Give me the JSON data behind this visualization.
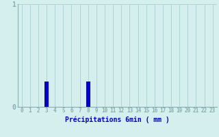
{
  "categories": [
    0,
    1,
    2,
    3,
    4,
    5,
    6,
    7,
    8,
    9,
    10,
    11,
    12,
    13,
    14,
    15,
    16,
    17,
    18,
    19,
    20,
    21,
    22,
    23
  ],
  "values": [
    0,
    0,
    0,
    0.25,
    0,
    0,
    0,
    0,
    0.25,
    0,
    0,
    0,
    0,
    0,
    0,
    0,
    0,
    0,
    0,
    0,
    0,
    0,
    0,
    0
  ],
  "bar_color": "#0000cc",
  "background_color": "#d4efee",
  "grid_color": "#aacfcf",
  "axis_color": "#8aadad",
  "text_color": "#0000cc",
  "xlabel": "Précipitations 6min ( mm )",
  "ylim": [
    0,
    1
  ],
  "xlim": [
    -0.5,
    23.5
  ],
  "yticks": [
    0,
    1
  ],
  "xticks": [
    0,
    1,
    2,
    3,
    4,
    5,
    6,
    7,
    8,
    9,
    10,
    11,
    12,
    13,
    14,
    15,
    16,
    17,
    18,
    19,
    20,
    21,
    22,
    23
  ],
  "xlabel_fontsize": 7,
  "tick_fontsize": 5.5,
  "ytick_fontsize": 7,
  "bar_width": 0.5
}
